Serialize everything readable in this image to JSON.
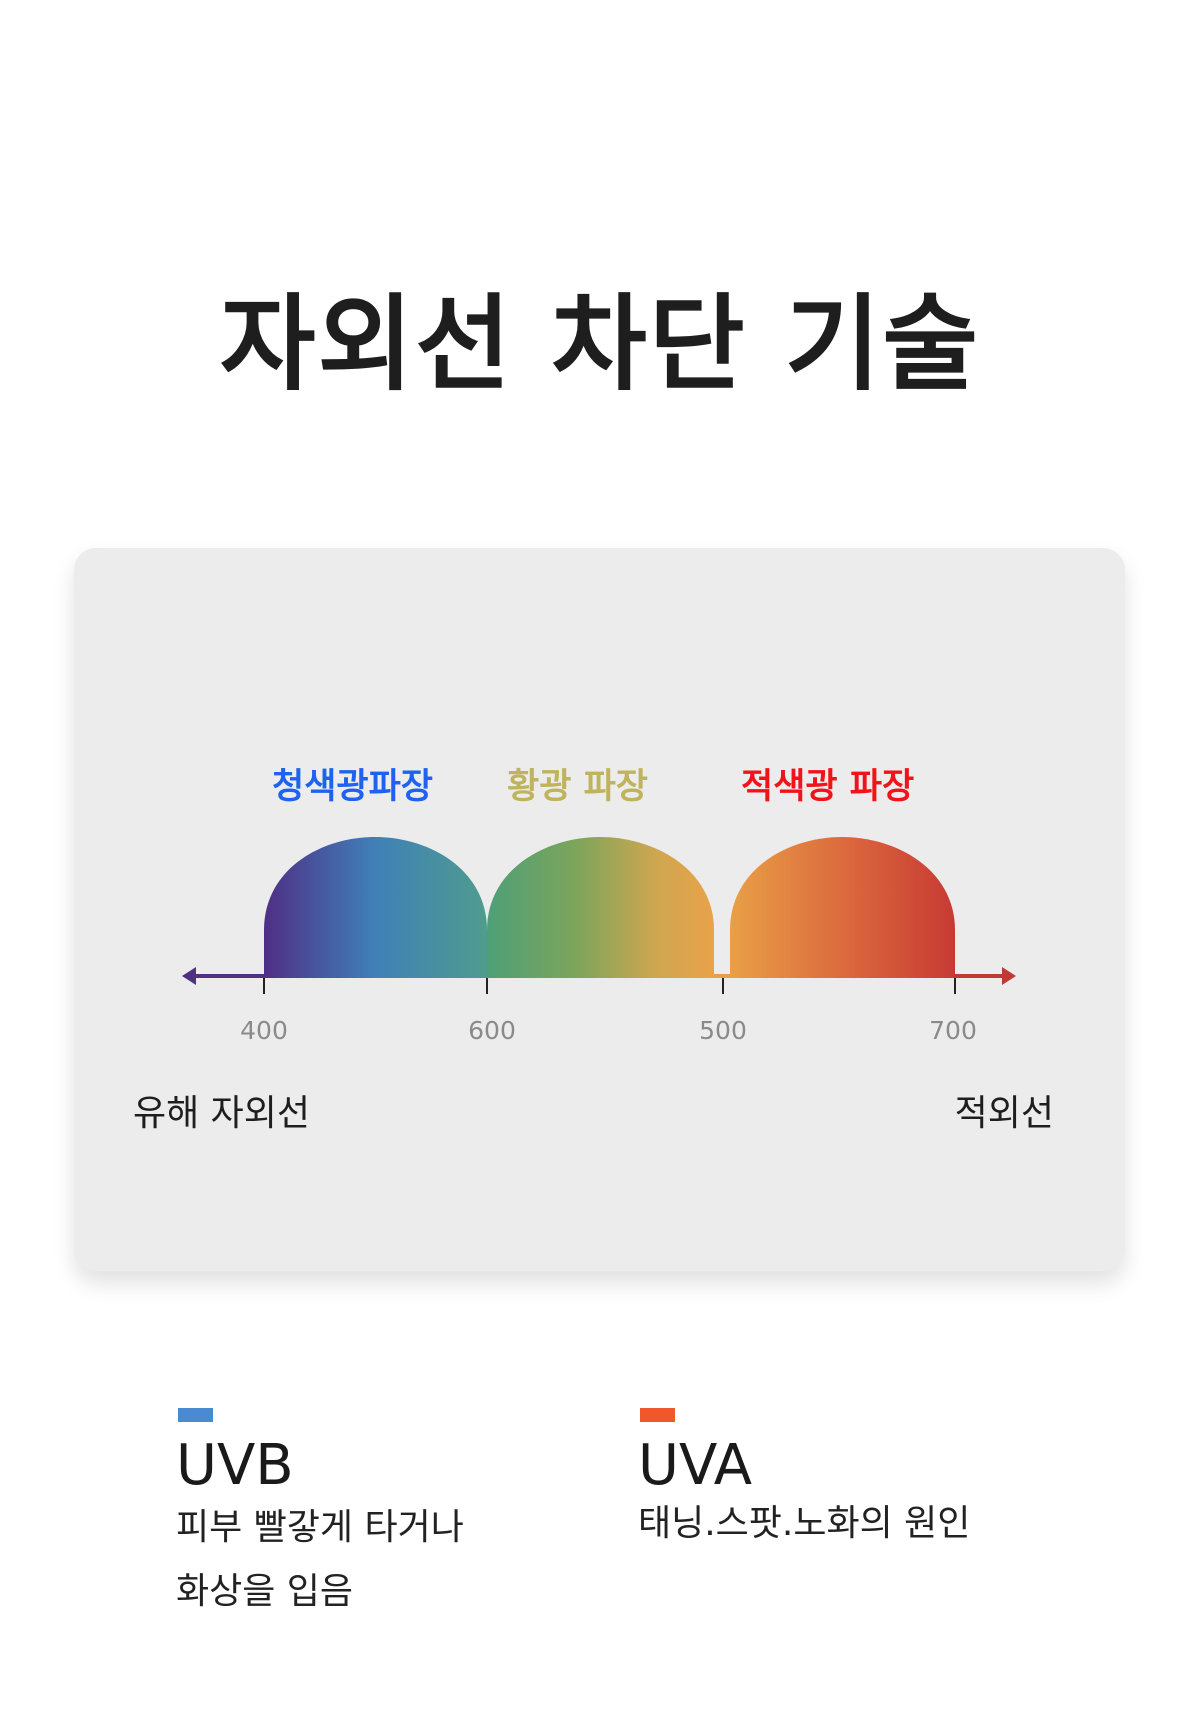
{
  "title": "자외선 차단 기술",
  "wavelength_labels": [
    {
      "text": "청색광파장",
      "color": "#1e62ef"
    },
    {
      "text": "황광 파장",
      "color": "#bfb35e"
    },
    {
      "text": "적색광 파장",
      "color": "#f0141a"
    }
  ],
  "tick_labels": [
    "400",
    "600",
    "500",
    "700"
  ],
  "axis": {
    "left_label": "유해 자외선",
    "right_label": "적외선"
  },
  "legend": [
    {
      "name": "UVB",
      "color": "#4a8ad0",
      "description": [
        "피부 빨갛게 타거나",
        "화상을 입음"
      ]
    },
    {
      "name": "UVA",
      "color": "#f0572a",
      "description": [
        "태닝.스팟.노화의 원인"
      ]
    }
  ]
}
